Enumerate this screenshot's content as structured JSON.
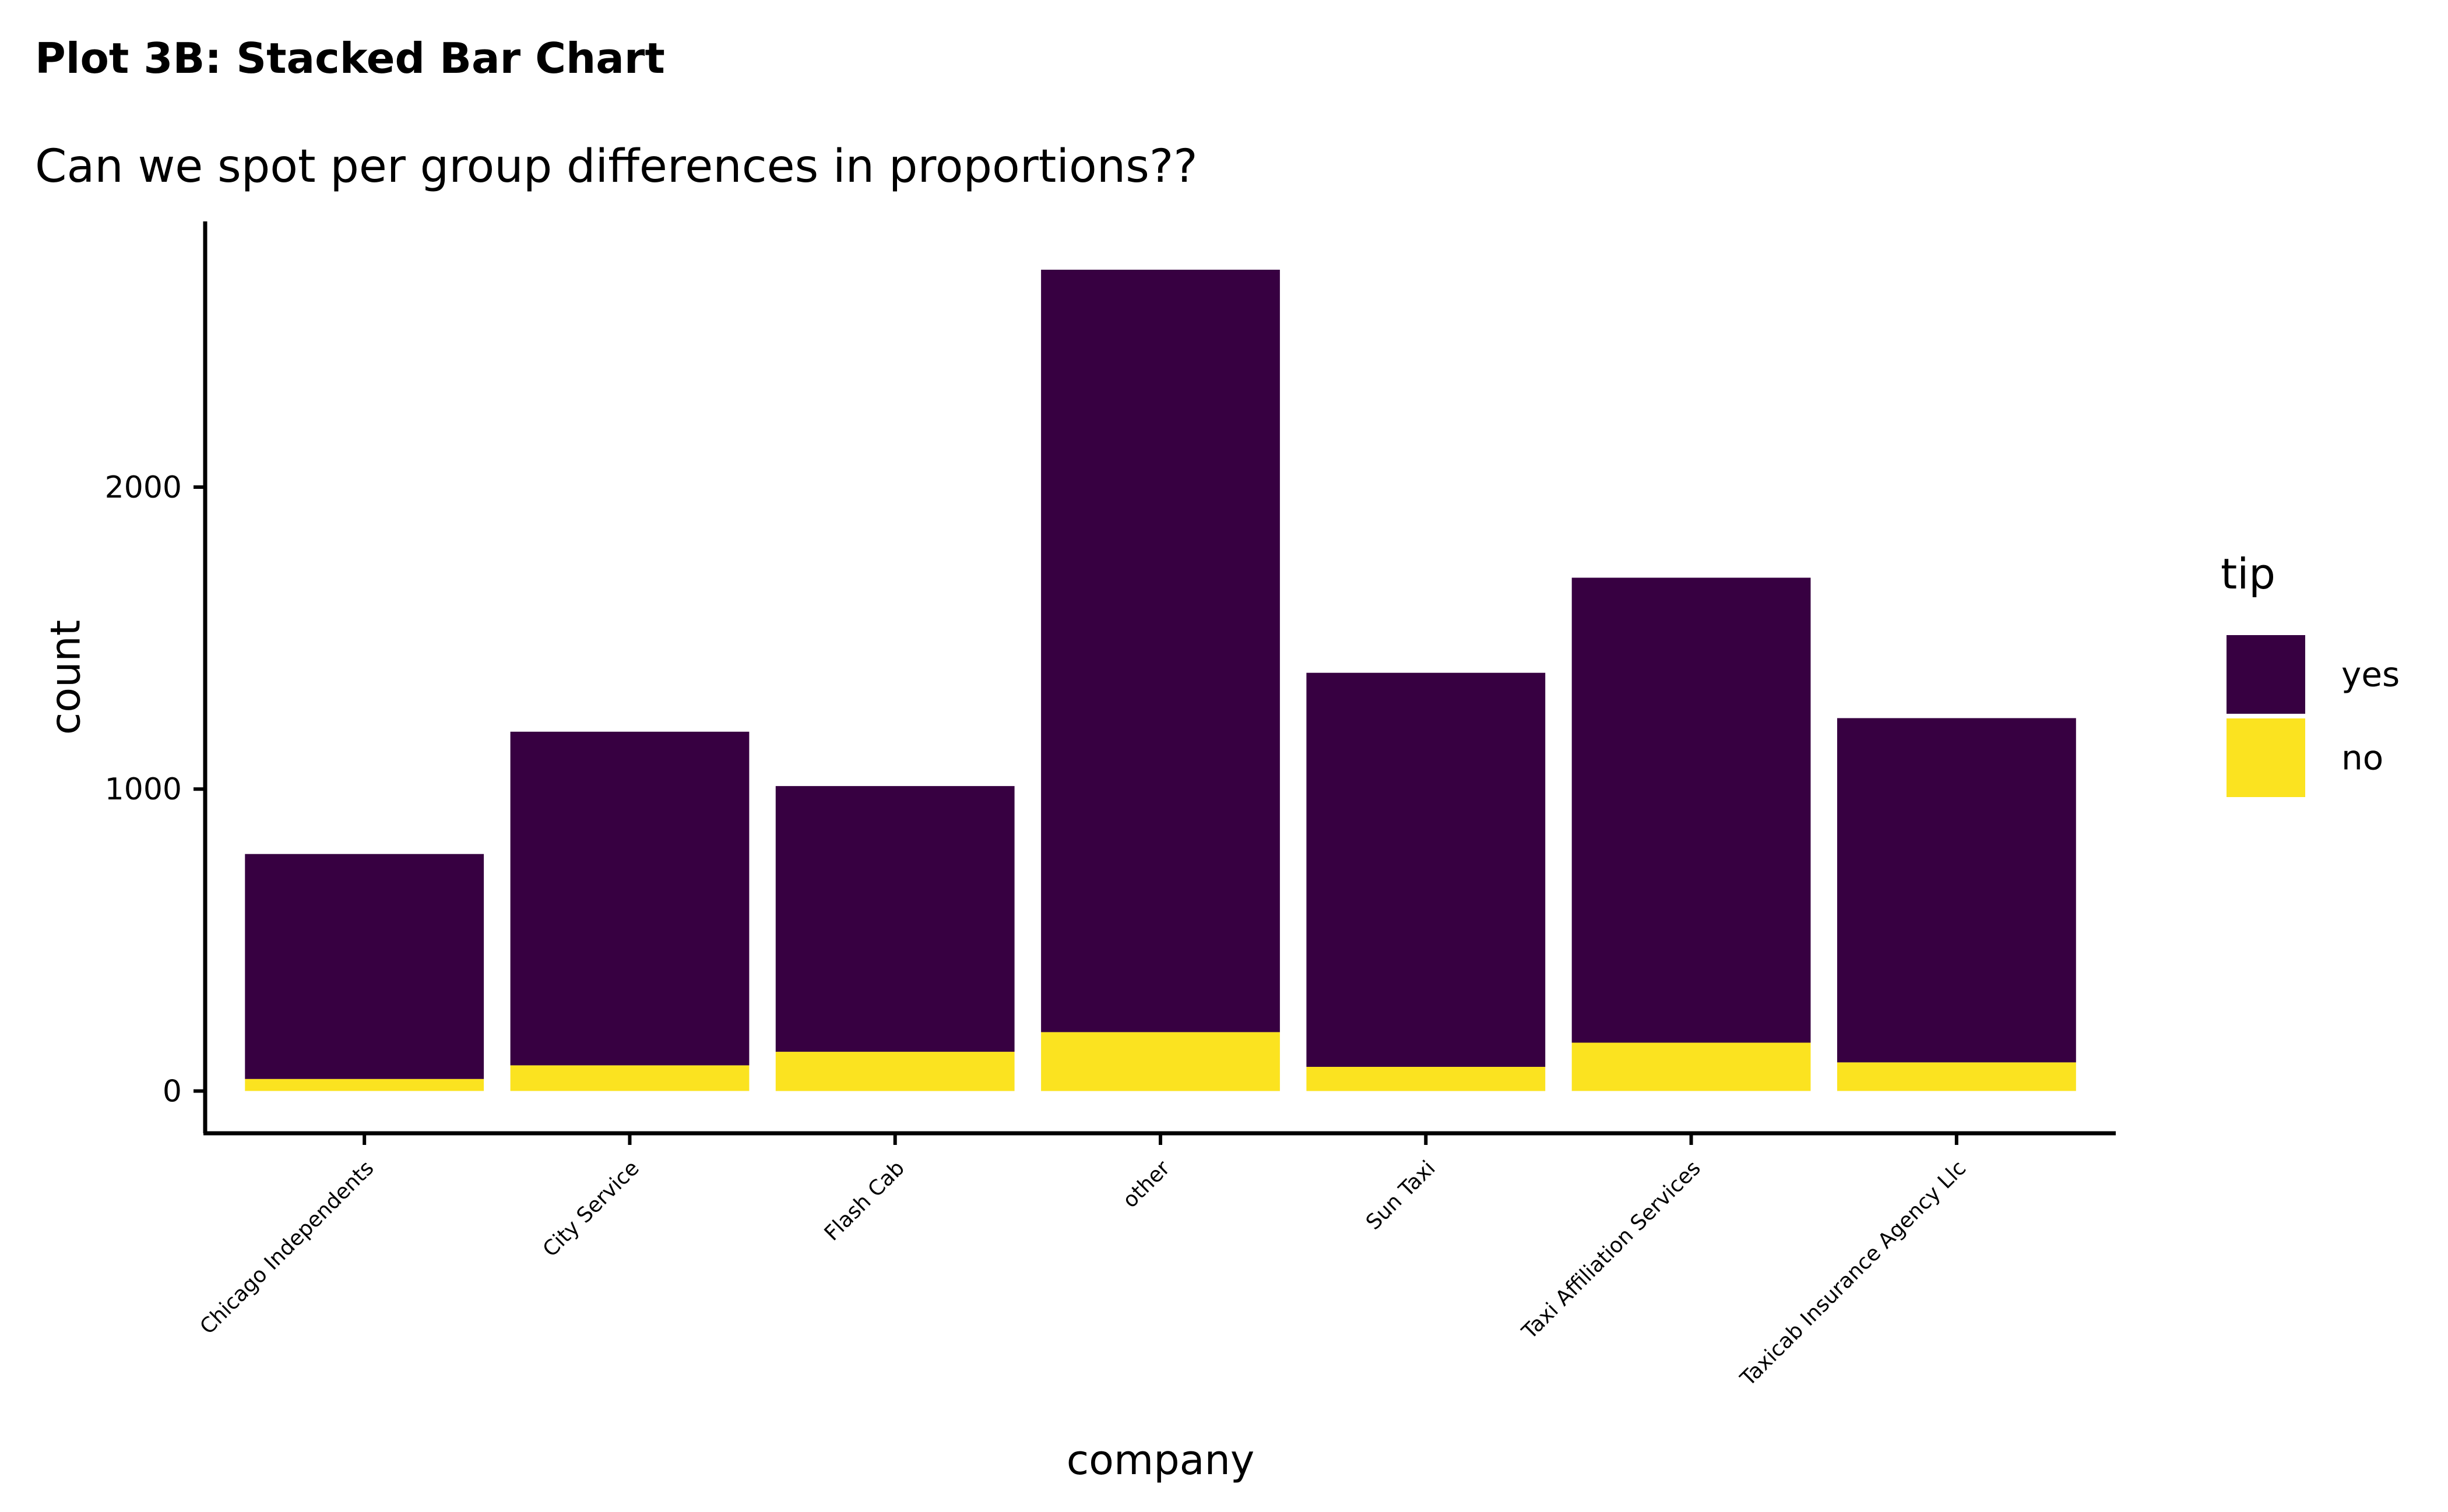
{
  "chart_data": {
    "type": "bar",
    "stacked": true,
    "title": "Plot 3B: Stacked Bar Chart",
    "subtitle": "Can we spot per group differences in proportions??",
    "xlabel": "company",
    "ylabel": "count",
    "ylim": [
      -140,
      2880
    ],
    "yticks": [
      0,
      1000,
      2000
    ],
    "categories": [
      "Chicago Independents",
      "City Service",
      "Flash Cab",
      "other",
      "Sun Taxi",
      "Taxi Affiliation Services",
      "Taxicab Insurance Agency Llc"
    ],
    "legend_title": "tip",
    "legend_position": "right",
    "grid": false,
    "series": [
      {
        "name": "yes",
        "color": "#370041",
        "values": [
          745,
          1105,
          880,
          2525,
          1305,
          1540,
          1140
        ]
      },
      {
        "name": "no",
        "color": "#FBE320",
        "values": [
          40,
          85,
          130,
          195,
          80,
          160,
          95
        ]
      }
    ]
  }
}
